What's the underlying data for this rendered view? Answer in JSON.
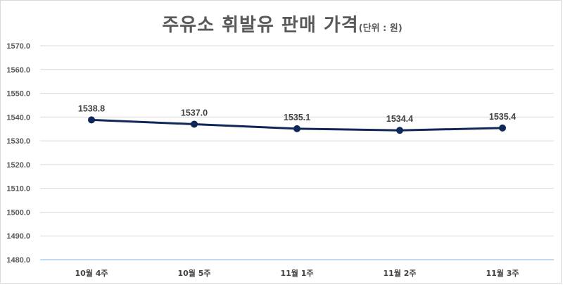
{
  "chart_data": {
    "type": "line",
    "title": "주유소 휘발유 판매 가격",
    "subtitle": "(단위 : 원)",
    "categories": [
      "10월 4주",
      "10월 5주",
      "11월 1주",
      "11월 2주",
      "11월 3주"
    ],
    "series": [
      {
        "values": [
          1538.8,
          1537.0,
          1535.1,
          1534.4,
          1535.4
        ]
      }
    ],
    "data_labels": [
      "1538.8",
      "1537.0",
      "1535.1",
      "1534.4",
      "1535.4"
    ],
    "ylim": [
      1480,
      1570
    ],
    "yticks": [
      "1480.0",
      "1490.0",
      "1500.0",
      "1510.0",
      "1520.0",
      "1530.0",
      "1540.0",
      "1550.0",
      "1560.0",
      "1570.0"
    ],
    "grid": true,
    "xlabel": "",
    "ylabel": "",
    "colors": {
      "line": "#10275a",
      "marker": "#10275a",
      "grid": "#d9d9d9",
      "baseline": "#9dc3e6"
    }
  }
}
